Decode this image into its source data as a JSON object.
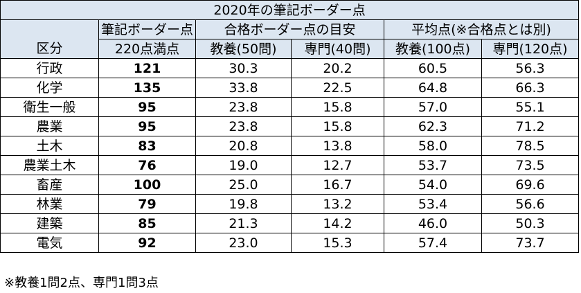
{
  "title": "2020年の筆記ボーダー点",
  "headers": {
    "border_score": "筆記ボーダー点",
    "pass_guide": "合格ボーダー点の目安",
    "average": "平均点(※合格点とは別)",
    "category": "区分",
    "full_marks": "220点満点",
    "cols": [
      "教養(50問)",
      "専門(40問)",
      "教養(100点)",
      "専門(120点)"
    ]
  },
  "rows": [
    {
      "category": "行政",
      "border": "121",
      "edu_q": "30.3",
      "spec_q": "20.2",
      "edu_avg": "60.5",
      "spec_avg": "56.3"
    },
    {
      "category": "化学",
      "border": "135",
      "edu_q": "33.8",
      "spec_q": "22.5",
      "edu_avg": "64.8",
      "spec_avg": "66.3"
    },
    {
      "category": "衛生一般",
      "border": "95",
      "edu_q": "23.8",
      "spec_q": "15.8",
      "edu_avg": "57.0",
      "spec_avg": "55.1"
    },
    {
      "category": "農業",
      "border": "95",
      "edu_q": "23.8",
      "spec_q": "15.8",
      "edu_avg": "62.3",
      "spec_avg": "71.2"
    },
    {
      "category": "土木",
      "border": "83",
      "edu_q": "20.8",
      "spec_q": "13.8",
      "edu_avg": "58.0",
      "spec_avg": "78.5"
    },
    {
      "category": "農業土木",
      "border": "76",
      "edu_q": "19.0",
      "spec_q": "12.7",
      "edu_avg": "53.7",
      "spec_avg": "73.5"
    },
    {
      "category": "畜産",
      "border": "100",
      "edu_q": "25.0",
      "spec_q": "16.7",
      "edu_avg": "54.0",
      "spec_avg": "69.6"
    },
    {
      "category": "林業",
      "border": "79",
      "edu_q": "19.8",
      "spec_q": "13.2",
      "edu_avg": "53.4",
      "spec_avg": "56.6"
    },
    {
      "category": "建築",
      "border": "85",
      "edu_q": "21.3",
      "spec_q": "14.2",
      "edu_avg": "46.0",
      "spec_avg": "50.3"
    },
    {
      "category": "電気",
      "border": "92",
      "edu_q": "23.0",
      "spec_q": "15.3",
      "edu_avg": "57.4",
      "spec_avg": "73.7"
    }
  ],
  "footnote": "※教養1問2点、専門1問3点",
  "colors": {
    "header_bg": "#dce6f1",
    "border": "#000000"
  }
}
